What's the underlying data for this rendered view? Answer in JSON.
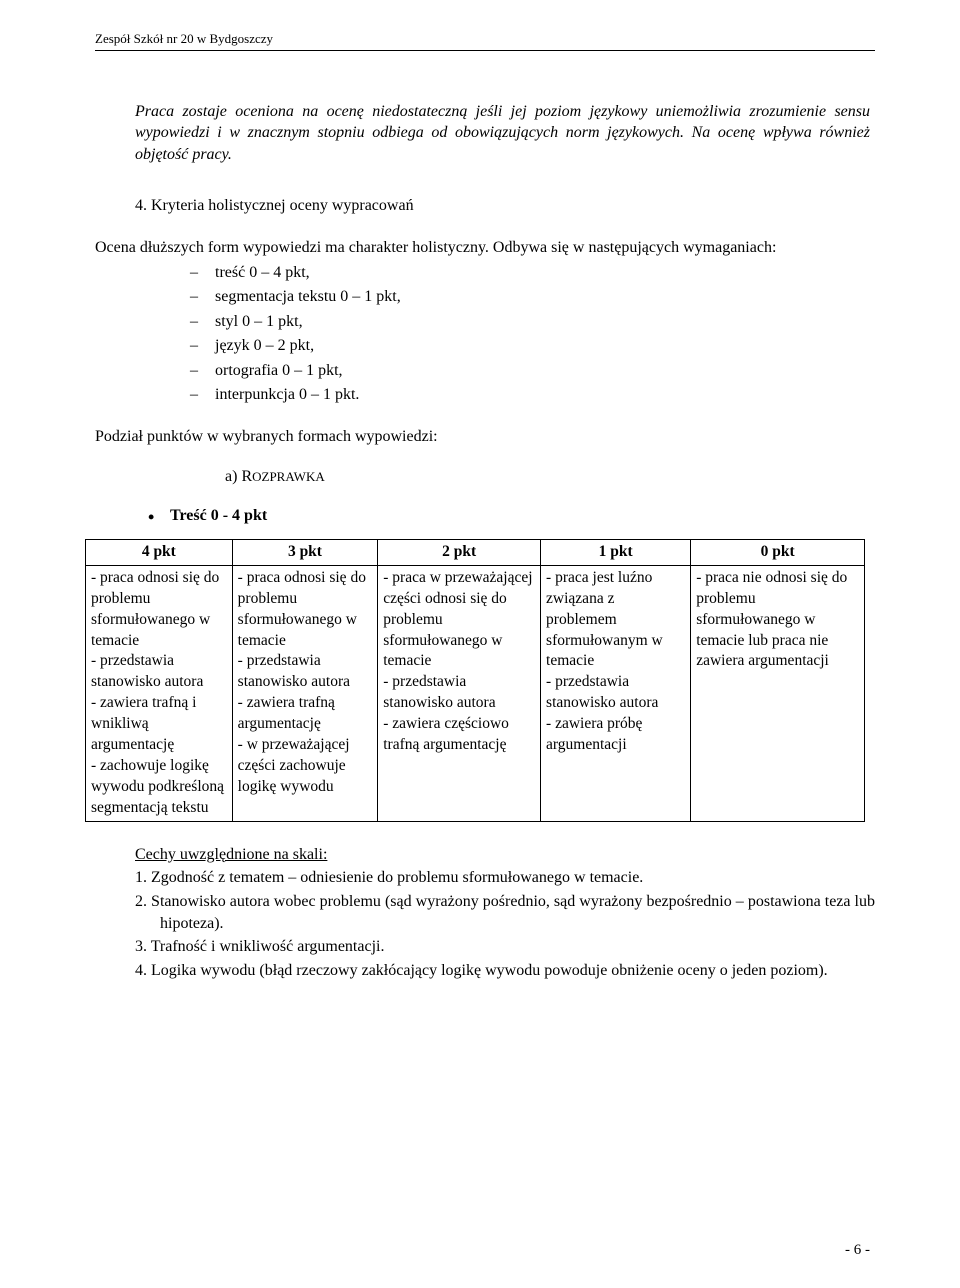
{
  "header": "Zespół Szkół nr 20 w Bydgoszczy",
  "italic_para": "Praca zostaje oceniona na ocenę niedostateczną jeśli jej poziom językowy uniemożliwia zrozumienie sensu wypowiedzi i w znacznym stopniu odbiega od obowiązujących norm językowych. Na ocenę wpływa również objętość pracy.",
  "section_num": "4.   Kryteria holistycznej oceny wypracowań",
  "intro": "Ocena dłuższych form wypowiedzi ma charakter holistyczny. Odbywa się w następujących wymaganiach:",
  "criteria": [
    "treść 0 – 4 pkt,",
    "segmentacja tekstu 0 – 1 pkt,",
    "styl 0 – 1 pkt,",
    "język 0 – 2 pkt,",
    "ortografia 0 – 1 pkt,",
    "interpunkcja 0 – 1 pkt."
  ],
  "sub_para": "Podział punktów w wybranych formach wypowiedzi:",
  "alpha_label": "a)  ",
  "alpha_text_prefix": "R",
  "alpha_text_rest": "OZPRAWKA",
  "bullet": "Treść 0 - 4 pkt",
  "table": {
    "headers": [
      "4 pkt",
      "3 pkt",
      "2 pkt",
      "1 pkt",
      "0 pkt"
    ],
    "cells": [
      "- praca odnosi się do problemu sformułowanego w temacie\n- przedstawia stanowisko autora\n- zawiera trafną i wnikliwą argumentację\n - zachowuje logikę wywodu podkreśloną segmentacją tekstu",
      "- praca odnosi się do problemu sformułowanego w temacie\n- przedstawia stanowisko autora\n- zawiera trafną argumentację\n - w przeważającej części zachowuje logikę wywodu",
      "- praca w przeważającej części odnosi się do problemu sformułowanego w temacie\n- przedstawia stanowisko autora\n- zawiera częściowo trafną argumentację",
      "- praca jest luźno związana z problemem sformułowanym w temacie\n- przedstawia stanowisko autora\n - zawiera próbę argumentacji",
      "- praca nie odnosi się do problemu sformułowanego w temacie lub praca nie zawiera argumentacji"
    ]
  },
  "notes_head": "Cechy uwzględnione na skali:",
  "notes": [
    "1.   Zgodność z tematem – odniesienie do problemu sformułowanego w temacie.",
    "2.   Stanowisko autora wobec problemu (sąd wyrażony pośrednio, sąd wyrażony bezpośrednio – postawiona teza lub hipoteza).",
    "3.    Trafność i wnikliwość argumentacji.",
    "4.   Logika wywodu (błąd rzeczowy zakłócający logikę wywodu powoduje obniżenie oceny o jeden poziom)."
  ],
  "page_num": "- 6 -"
}
